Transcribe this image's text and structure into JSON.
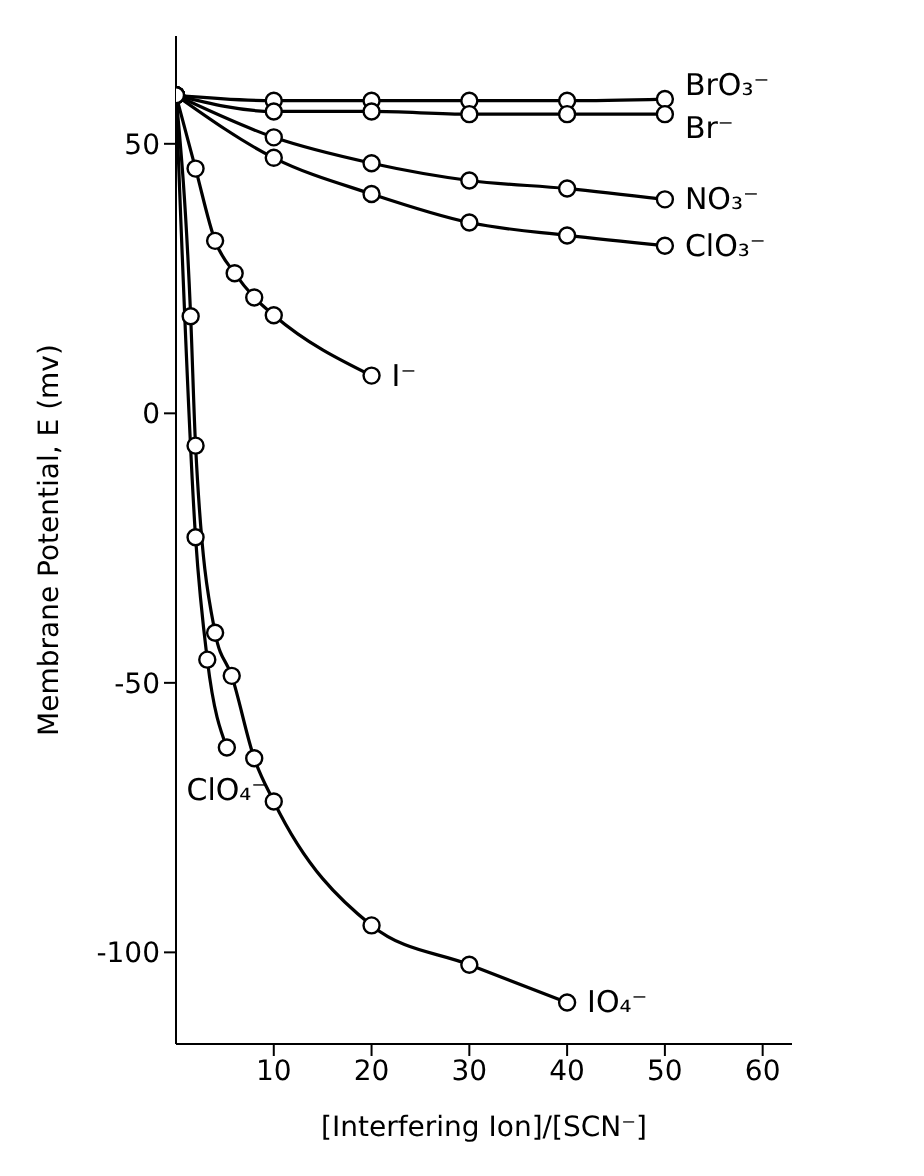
{
  "chart_data": {
    "type": "line",
    "xlabel": "[Interfering Ion]/[SCN⁻]",
    "ylabel": "Membrane Potential, E (mv)",
    "xlim": [
      0,
      63
    ],
    "ylim": [
      -117,
      70
    ],
    "xticks": [
      10,
      20,
      30,
      40,
      50,
      60
    ],
    "yticks": [
      -100,
      -50,
      0,
      50
    ],
    "grid": false,
    "legend": false,
    "marker": "circle",
    "line_style": "solid",
    "series": [
      {
        "name": "BrO₃⁻",
        "color": "#000000",
        "x": [
          0,
          10,
          20,
          30,
          40,
          50
        ],
        "values": [
          59,
          58,
          58,
          58,
          58,
          58.3
        ]
      },
      {
        "name": "Br⁻",
        "color": "#000000",
        "x": [
          0,
          10,
          20,
          30,
          40,
          50
        ],
        "values": [
          59,
          56,
          56,
          55.5,
          55.5,
          55.5
        ]
      },
      {
        "name": "NO₃⁻",
        "color": "#000000",
        "x": [
          0,
          10,
          20,
          30,
          40,
          50
        ],
        "values": [
          59,
          51.2,
          46.4,
          43.2,
          41.7,
          39.7
        ]
      },
      {
        "name": "ClO₃⁻",
        "color": "#000000",
        "x": [
          0,
          10,
          20,
          30,
          40,
          50
        ],
        "values": [
          59,
          47.4,
          40.7,
          35.4,
          33,
          31.1
        ]
      },
      {
        "name": "I⁻",
        "color": "#000000",
        "x": [
          0,
          2,
          4,
          6,
          8,
          10,
          20
        ],
        "values": [
          59,
          45.4,
          32,
          26,
          21.5,
          18.2,
          7
        ]
      },
      {
        "name": "ClO₄⁻",
        "color": "#000000",
        "x": [
          0,
          2,
          3.2,
          5.2
        ],
        "values": [
          59,
          -23,
          -45.7,
          -62
        ]
      },
      {
        "name": "IO₄⁻",
        "color": "#000000",
        "x": [
          0,
          1.5,
          2,
          4,
          5.7,
          8,
          10,
          20,
          30,
          40
        ],
        "values": [
          59,
          18,
          -6,
          -40.7,
          -48.7,
          -64,
          -72,
          -95,
          -102.3,
          -109.3
        ]
      }
    ]
  }
}
